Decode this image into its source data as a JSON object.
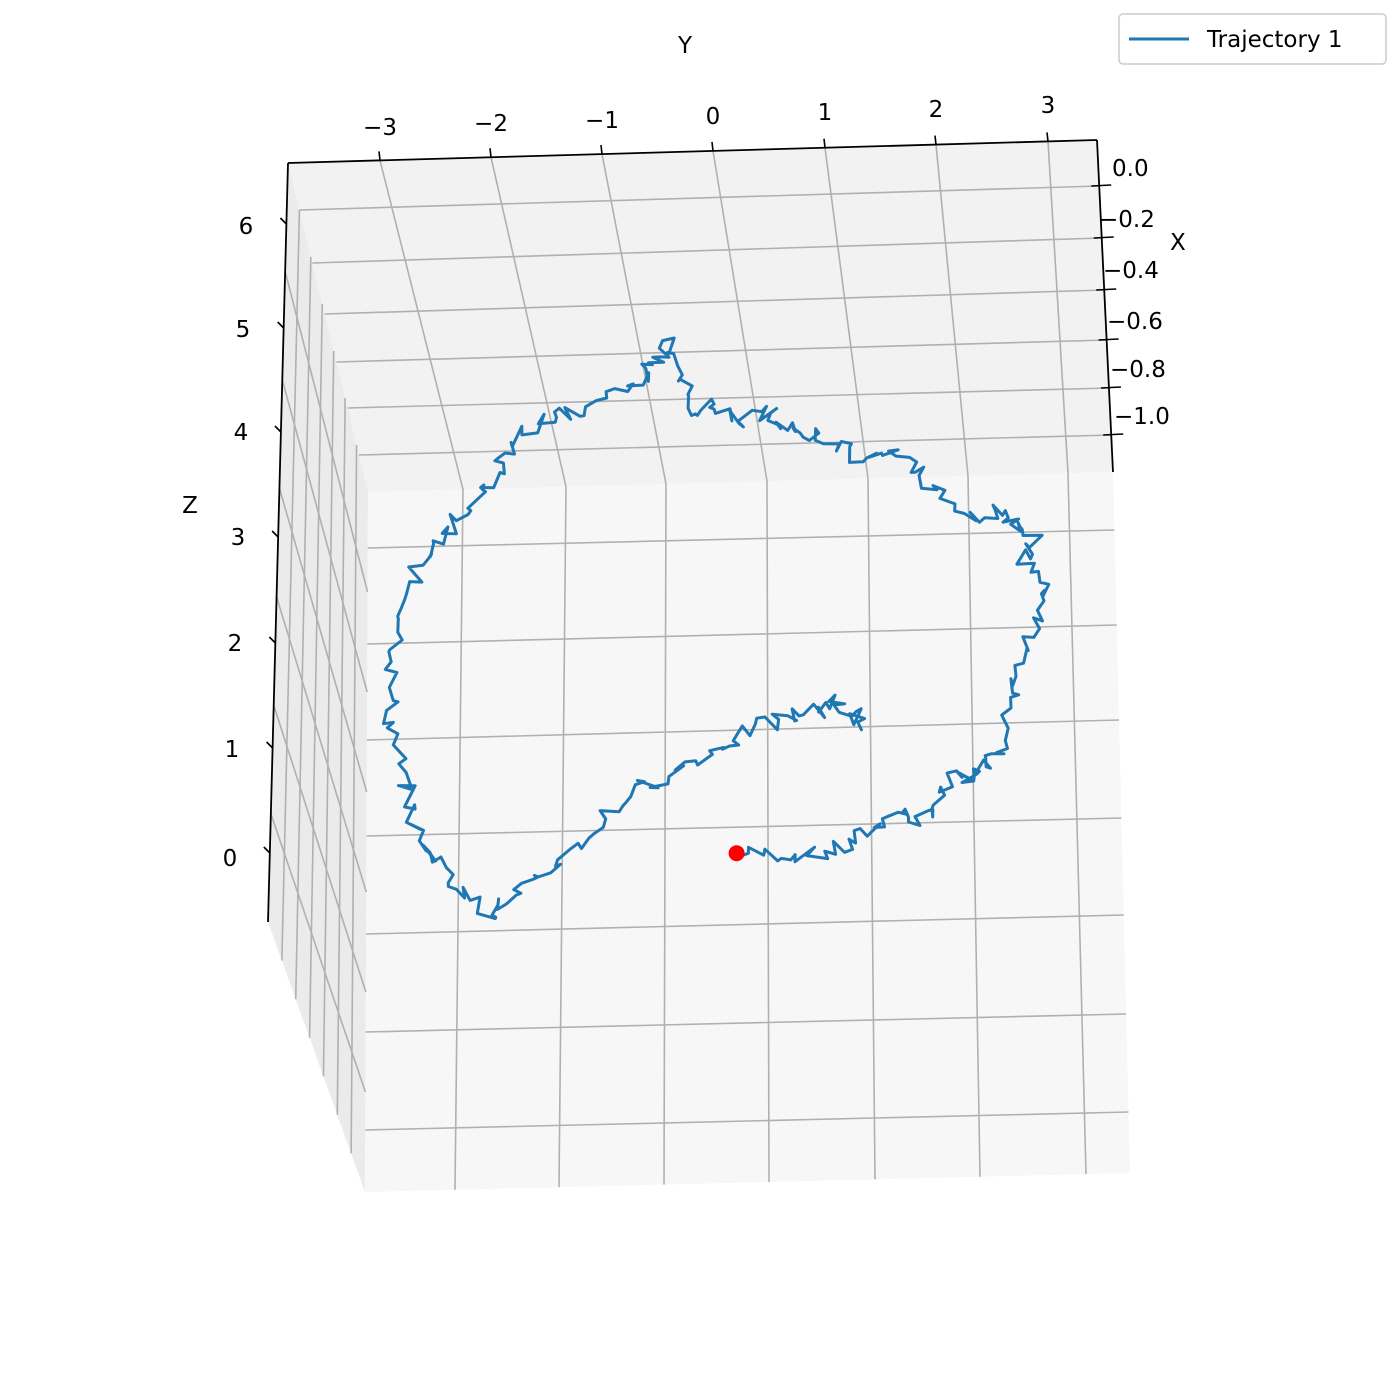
{
  "chart_data": {
    "type": "line3d",
    "xlabel": "X",
    "ylabel": "Y",
    "zlabel": "Z",
    "x_ticks": [
      "0.0",
      "−0.2",
      "−0.4",
      "−0.6",
      "−0.8",
      "−1.0"
    ],
    "y_ticks": [
      "−3",
      "−2",
      "−1",
      "0",
      "1",
      "2",
      "3"
    ],
    "z_ticks": [
      "0",
      "1",
      "2",
      "3",
      "4",
      "5",
      "6"
    ],
    "xlim": [
      -1.1,
      0.0
    ],
    "ylim": [
      -3.5,
      3.5
    ],
    "zlim": [
      -0.5,
      6.5
    ],
    "grid": true,
    "legend": {
      "position": "top-right",
      "entries": [
        "Trajectory 1"
      ]
    },
    "series": [
      {
        "name": "Trajectory 1",
        "color": "#1f77b4",
        "marker_start_color": "#ff0000",
        "note_start": "red dot marks trajectory start",
        "points_yz": [
          [
            0.1,
            0.0
          ],
          [
            0.5,
            0.0
          ],
          [
            0.9,
            0.0
          ],
          [
            1.3,
            0.1
          ],
          [
            1.5,
            0.3
          ],
          [
            1.8,
            0.5
          ],
          [
            2.0,
            0.4
          ],
          [
            2.2,
            0.6
          ],
          [
            2.4,
            0.9
          ],
          [
            2.6,
            0.9
          ],
          [
            2.7,
            1.1
          ],
          [
            2.9,
            1.3
          ],
          [
            3.0,
            1.8
          ],
          [
            3.1,
            2.2
          ],
          [
            3.2,
            2.6
          ],
          [
            3.3,
            3.0
          ],
          [
            3.1,
            3.3
          ],
          [
            3.2,
            3.6
          ],
          [
            3.0,
            3.7
          ],
          [
            2.9,
            3.9
          ],
          [
            2.6,
            3.8
          ],
          [
            2.2,
            4.0
          ],
          [
            2.0,
            4.3
          ],
          [
            1.7,
            4.5
          ],
          [
            1.4,
            4.4
          ],
          [
            1.1,
            4.6
          ],
          [
            0.8,
            4.7
          ],
          [
            0.6,
            4.8
          ],
          [
            0.4,
            4.9
          ],
          [
            0.1,
            4.8
          ],
          [
            -0.1,
            5.0
          ],
          [
            -0.3,
            4.9
          ],
          [
            -0.5,
            5.3
          ],
          [
            -0.6,
            5.7
          ],
          [
            -0.7,
            5.5
          ],
          [
            -0.9,
            5.3
          ],
          [
            -1.2,
            5.1
          ],
          [
            -1.6,
            4.9
          ],
          [
            -1.9,
            4.9
          ],
          [
            -2.2,
            4.6
          ],
          [
            -2.4,
            4.3
          ],
          [
            -2.6,
            4.0
          ],
          [
            -2.9,
            3.7
          ],
          [
            -3.1,
            3.4
          ],
          [
            -3.3,
            3.1
          ],
          [
            -3.4,
            2.6
          ],
          [
            -3.5,
            2.0
          ],
          [
            -3.5,
            1.5
          ],
          [
            -3.4,
            1.0
          ],
          [
            -3.3,
            0.6
          ],
          [
            -3.2,
            0.2
          ],
          [
            -3.0,
            0.0
          ],
          [
            -2.8,
            -0.3
          ],
          [
            -2.5,
            -0.6
          ],
          [
            -2.3,
            -0.5
          ],
          [
            -2.0,
            -0.3
          ],
          [
            -1.7,
            0.0
          ],
          [
            -1.4,
            0.3
          ],
          [
            -1.1,
            0.6
          ],
          [
            -0.8,
            0.8
          ],
          [
            -0.4,
            1.0
          ],
          [
            0.0,
            1.2
          ],
          [
            0.3,
            1.4
          ],
          [
            0.6,
            1.5
          ],
          [
            0.9,
            1.6
          ],
          [
            1.1,
            1.7
          ],
          [
            1.3,
            1.6
          ],
          [
            1.4,
            1.4
          ]
        ]
      }
    ]
  }
}
